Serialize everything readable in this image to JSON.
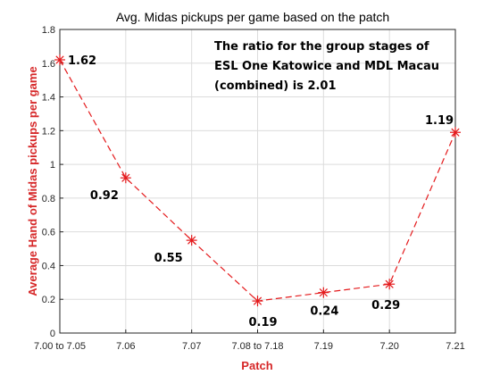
{
  "chart_data": {
    "type": "line",
    "title": "Avg. Midas pickups per game based on the patch",
    "xlabel": "Patch",
    "ylabel": "Average Hand of Midas pickups per game",
    "categories": [
      "7.00 to 7.05",
      "7.06",
      "7.07",
      "7.08 to 7.18",
      "7.19",
      "7.20",
      "7.21"
    ],
    "series": [
      {
        "values": [
          1.62,
          0.92,
          0.55,
          0.19,
          0.24,
          0.29,
          1.19
        ]
      }
    ],
    "data_labels": [
      "1.62",
      "0.92",
      "0.55",
      "0.19",
      "0.24",
      "0.29",
      "1.19"
    ],
    "ylim": [
      0,
      1.8
    ],
    "yticks": [
      0,
      0.2,
      0.4,
      0.6,
      0.8,
      1,
      1.2,
      1.4,
      1.6,
      1.8
    ],
    "ytick_labels": [
      "0",
      "0.2",
      "0.4",
      "0.6",
      "0.8",
      "1",
      "1.2",
      "1.4",
      "1.6",
      "1.8"
    ],
    "grid": true,
    "line_style": "dashed",
    "marker": "asterisk",
    "series_color": "#e41a1c",
    "axis_label_color": "#d62728",
    "annotation": [
      "The ratio for the group stages of",
      "ESL One Katowice and MDL Macau",
      "(combined) is 2.01"
    ]
  }
}
